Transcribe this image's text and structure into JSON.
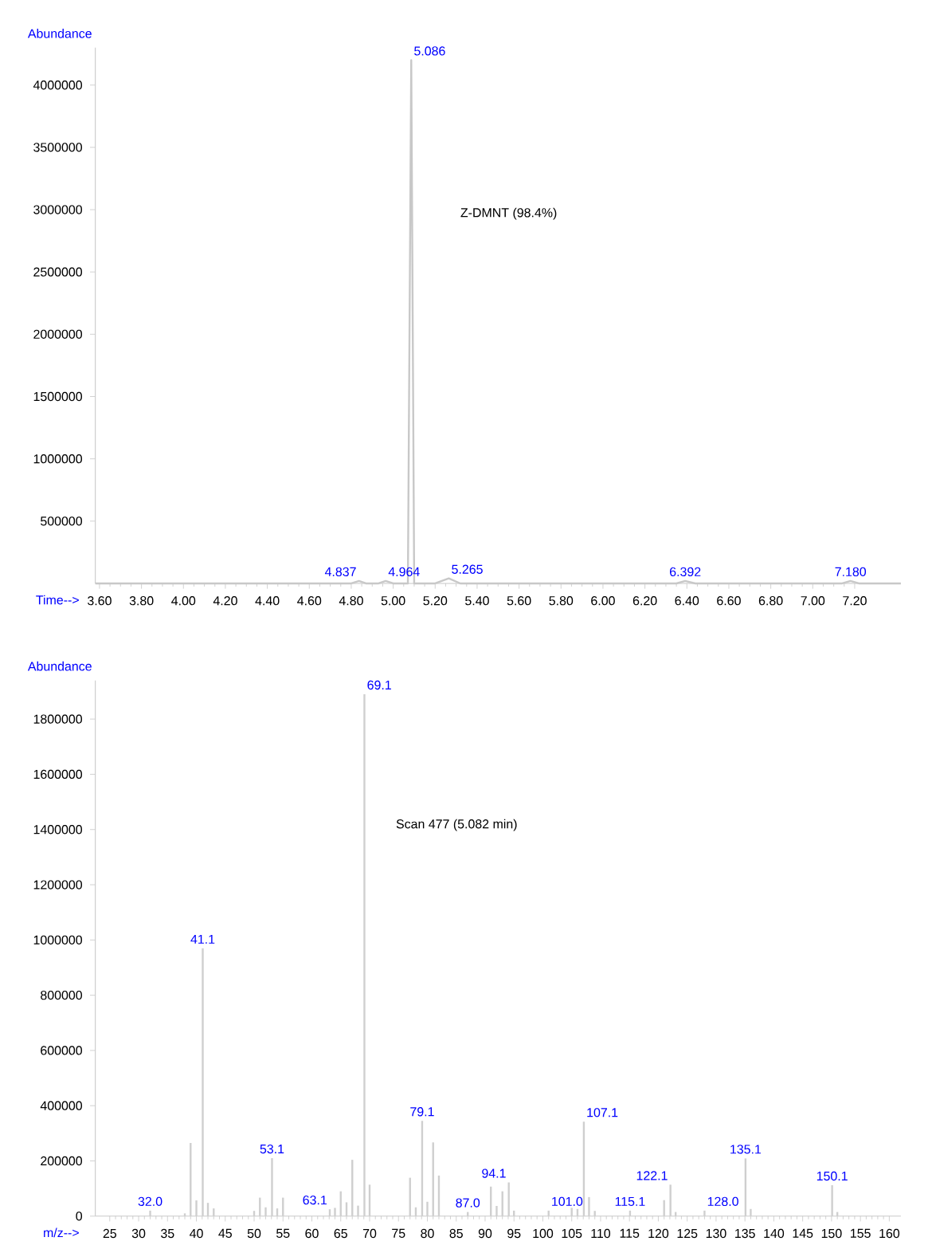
{
  "chart_data": [
    {
      "type": "line",
      "xlabel": "Time-->",
      "ylabel": "Abundance",
      "color": "#c8c8c8",
      "x": [
        3.58,
        4.8,
        4.837,
        4.87,
        4.93,
        4.964,
        5.0,
        5.07,
        5.086,
        5.1,
        5.2,
        5.265,
        5.32,
        6.35,
        6.392,
        6.44,
        7.14,
        7.18,
        7.22,
        7.42
      ],
      "values": [
        0,
        0,
        20000,
        0,
        0,
        20000,
        0,
        0,
        4200000,
        0,
        0,
        40000,
        0,
        0,
        20000,
        0,
        0,
        20000,
        0,
        0
      ],
      "xlim": [
        3.58,
        7.42
      ],
      "ylim": [
        0,
        4300000
      ],
      "xticks": [
        {
          "value": 3.6,
          "label": "3.60"
        },
        {
          "value": 3.8,
          "label": "3.80"
        },
        {
          "value": 4.0,
          "label": "4.00"
        },
        {
          "value": 4.2,
          "label": "4.20"
        },
        {
          "value": 4.4,
          "label": "4.40"
        },
        {
          "value": 4.6,
          "label": "4.60"
        },
        {
          "value": 4.8,
          "label": "4.80"
        },
        {
          "value": 5.0,
          "label": "5.00"
        },
        {
          "value": 5.2,
          "label": "5.20"
        },
        {
          "value": 5.4,
          "label": "5.40"
        },
        {
          "value": 5.6,
          "label": "5.60"
        },
        {
          "value": 5.8,
          "label": "5.80"
        },
        {
          "value": 6.0,
          "label": "6.00"
        },
        {
          "value": 6.2,
          "label": "6.20"
        },
        {
          "value": 6.4,
          "label": "6.40"
        },
        {
          "value": 6.6,
          "label": "6.60"
        },
        {
          "value": 6.8,
          "label": "6.80"
        },
        {
          "value": 7.0,
          "label": "7.00"
        },
        {
          "value": 7.2,
          "label": "7.20"
        }
      ],
      "yticks": [
        500000,
        1000000,
        1500000,
        2000000,
        2500000,
        3000000,
        3500000,
        4000000
      ],
      "annotations": [
        {
          "text": "4.837",
          "x": 4.837,
          "y": 20000
        },
        {
          "text": "4.964",
          "x": 4.964,
          "y": 20000
        },
        {
          "text": "5.086",
          "x": 5.086,
          "y": 4200000
        },
        {
          "text": "5.265",
          "x": 5.265,
          "y": 40000
        },
        {
          "text": "6.392",
          "x": 6.392,
          "y": 20000
        },
        {
          "text": "7.180",
          "x": 7.18,
          "y": 20000
        },
        "Z-DMNT (98.4%)"
      ]
    },
    {
      "type": "bar",
      "xlabel": "m/z-->",
      "ylabel": "Abundance",
      "color": "#cfcfcf",
      "x": [
        32.0,
        38,
        39,
        40,
        41.1,
        42,
        43,
        50,
        51,
        52,
        53.1,
        54,
        55,
        63.1,
        64,
        65,
        66,
        67,
        68,
        69.1,
        70,
        77,
        78,
        79.1,
        80,
        81,
        82,
        87.0,
        91,
        92,
        93,
        94.1,
        95,
        101.0,
        105,
        106,
        107.1,
        108,
        109,
        115.1,
        121,
        122.1,
        123,
        128.0,
        135.1,
        136,
        150.1,
        151
      ],
      "values": [
        20000,
        10000,
        265000,
        57000,
        970000,
        48000,
        28000,
        19000,
        67000,
        32000,
        210000,
        28000,
        67000,
        25000,
        30000,
        90000,
        50000,
        204000,
        38000,
        1890000,
        114000,
        139000,
        32000,
        345000,
        52000,
        267000,
        147000,
        15000,
        107000,
        37000,
        90000,
        122000,
        20000,
        20000,
        30000,
        26000,
        342000,
        69000,
        19000,
        20000,
        58000,
        114000,
        15000,
        20000,
        209000,
        26000,
        112000,
        15000
      ],
      "xlim": [
        22.5,
        162
      ],
      "ylim": [
        0,
        1940000
      ],
      "xticks": [
        25,
        30,
        35,
        40,
        45,
        50,
        55,
        60,
        65,
        70,
        75,
        80,
        85,
        90,
        95,
        100,
        105,
        110,
        115,
        120,
        125,
        130,
        135,
        140,
        145,
        150,
        155,
        160
      ],
      "yticks": [
        0,
        200000,
        400000,
        600000,
        800000,
        1000000,
        1200000,
        1400000,
        1600000,
        1800000
      ],
      "annotations": [
        {
          "text": "32.0",
          "x": 32.0,
          "y": 20000
        },
        {
          "text": "41.1",
          "x": 41.1,
          "y": 970000
        },
        {
          "text": "53.1",
          "x": 53.1,
          "y": 210000
        },
        {
          "text": "63.1",
          "x": 63.1,
          "y": 25000
        },
        {
          "text": "69.1",
          "x": 69.1,
          "y": 1890000
        },
        {
          "text": "79.1",
          "x": 79.1,
          "y": 345000
        },
        {
          "text": "87.0",
          "x": 87.0,
          "y": 15000
        },
        {
          "text": "94.1",
          "x": 94.1,
          "y": 122000
        },
        {
          "text": "101.0",
          "x": 101.0,
          "y": 20000
        },
        {
          "text": "107.1",
          "x": 107.1,
          "y": 342000
        },
        {
          "text": "115.1",
          "x": 115.1,
          "y": 20000
        },
        {
          "text": "122.1",
          "x": 122.1,
          "y": 114000
        },
        {
          "text": "128.0",
          "x": 128.0,
          "y": 20000
        },
        {
          "text": "135.1",
          "x": 135.1,
          "y": 209000
        },
        {
          "text": "150.1",
          "x": 150.1,
          "y": 112000
        },
        "Scan 477 (5.082 min)"
      ]
    }
  ]
}
